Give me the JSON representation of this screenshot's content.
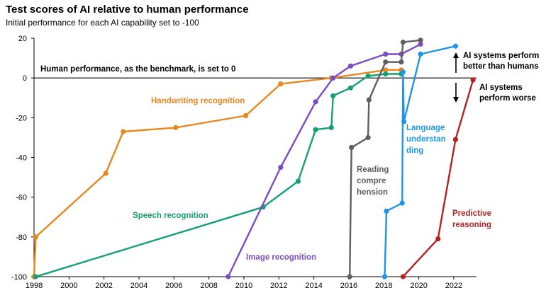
{
  "title": "Test scores of AI relative to human performance",
  "subtitle": "Initial performance for each AI capability set to -100",
  "chart_data": {
    "type": "line",
    "title": "Test scores of AI relative to human performance",
    "subtitle": "Initial performance for each AI capability set to -100",
    "xlabel": "",
    "ylabel": "",
    "xlim": [
      1998,
      2023.3
    ],
    "ylim": [
      -100,
      20
    ],
    "x_ticks": [
      "1998",
      "2000",
      "2002",
      "2004",
      "2006",
      "2008",
      "2010",
      "2012",
      "2014",
      "2016",
      "2018",
      "2020",
      "2022"
    ],
    "y_ticks": [
      "20",
      "0",
      "-20",
      "-40",
      "-60",
      "-80",
      "-100"
    ],
    "grid": false,
    "baseline_annotation": "Human performance, as the benchmark, is set to 0",
    "annotation_up": [
      "AI systems perform",
      "better than humans"
    ],
    "annotation_down": [
      "AI systems",
      "perform worse"
    ],
    "series": [
      {
        "name": "Handwriting recognition",
        "label_lines": [
          "Handwriting recognition"
        ],
        "color": "#E8871E",
        "x": [
          1998,
          1998.1,
          2002.1,
          2003.1,
          2006.1,
          2010.1,
          2012.1,
          2015,
          2018.1,
          2019
        ],
        "y": [
          -100,
          -80,
          -48,
          -27,
          -25,
          -19,
          -3,
          0,
          4,
          4
        ]
      },
      {
        "name": "Speech recognition",
        "label_lines": [
          "Speech recognition"
        ],
        "color": "#14A071",
        "x": [
          1998.1,
          2011.1,
          2013.1,
          2014.1,
          2015,
          2015.1,
          2016.1,
          2017.1,
          2018.1,
          2019
        ],
        "y": [
          -100,
          -65,
          -52,
          -26,
          -25,
          -9,
          -5,
          1,
          2,
          2
        ]
      },
      {
        "name": "Image recognition",
        "label_lines": [
          "Image recognition"
        ],
        "color": "#7B4CC4",
        "x": [
          2009.1,
          2012.1,
          2014.1,
          2015.1,
          2016.1,
          2018.1,
          2019,
          2020.1
        ],
        "y": [
          -100,
          -45,
          -12,
          0,
          6,
          12,
          12,
          17
        ]
      },
      {
        "name": "Reading comprehension",
        "label_lines": [
          "Reading",
          "compre",
          "hension"
        ],
        "color": "#5F5F5F",
        "x": [
          2016.05,
          2016.15,
          2017.1,
          2017.15,
          2018.1,
          2019,
          2019.1,
          2020.1
        ],
        "y": [
          -100,
          -35,
          -30,
          -11,
          8,
          8,
          18,
          19
        ]
      },
      {
        "name": "Language understanding",
        "label_lines": [
          "Language",
          "understan",
          "ding"
        ],
        "color": "#1E96E8",
        "x": [
          2018.05,
          2018.15,
          2019.05,
          2019.1,
          2019.15,
          2020.1,
          2022.1
        ],
        "y": [
          -100,
          -67,
          -63,
          3,
          -22,
          12,
          16
        ]
      },
      {
        "name": "Predictive reasoning",
        "label_lines": [
          "Predictive",
          "reasoning"
        ],
        "color": "#B22222",
        "x": [
          2019.1,
          2021.1,
          2022.1,
          2023.1
        ],
        "y": [
          -100,
          -81,
          -31,
          -1
        ]
      }
    ]
  }
}
